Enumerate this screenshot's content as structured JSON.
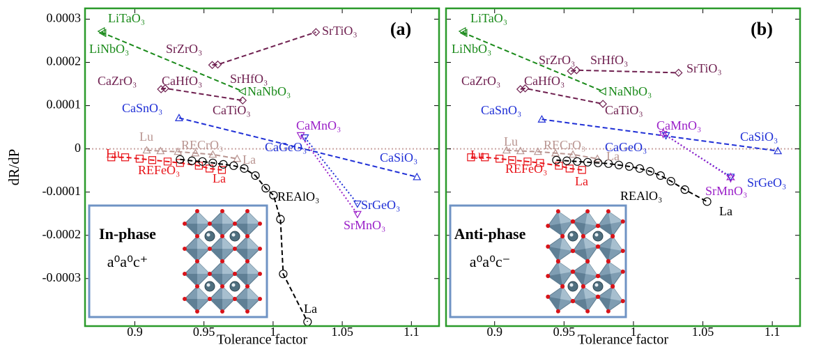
{
  "chart_data": [
    {
      "type": "line",
      "panel_label": "(a)",
      "ylabel": "dR/dP",
      "xlabel": "Tolerance factor",
      "xlim": [
        0.864,
        1.12
      ],
      "xticks": [
        0.9,
        0.95,
        1,
        1.05,
        1.1
      ],
      "ylim": [
        -0.00041,
        0.000325
      ],
      "yticks": [
        0.0003,
        0.0002,
        0.0001,
        0,
        -0.0001,
        -0.0002,
        -0.0003
      ],
      "show_ytick_labels": true,
      "reference_line": 0,
      "reference_color": "#c9a3a0",
      "frame_color": "#2a9a2a",
      "series": [
        {
          "color": "#1a8a1a",
          "dash": "dashed",
          "marker": "tri-left",
          "x": [
            0.876,
            0.877,
            0.978
          ],
          "values": [
            0.000272,
            0.000268,
            0.000133
          ]
        },
        {
          "color": "#6e1f4f",
          "dash": "dashed",
          "marker": "diamond",
          "x": [
            0.956,
            0.96,
            1.031
          ],
          "values": [
            0.000194,
            0.000195,
            0.00027
          ]
        },
        {
          "color": "#6e1f4f",
          "dash": "dashed",
          "marker": "diamond",
          "x": [
            0.919,
            0.922,
            0.978
          ],
          "values": [
            0.000138,
            0.00014,
            0.000112
          ]
        },
        {
          "color": "#1f2fd6",
          "dash": "dashed",
          "marker": "triangle",
          "x": [
            0.932,
            1.104
          ],
          "values": [
            7.15e-05,
            -6.5e-05
          ]
        },
        {
          "color": "#1f2fd6",
          "dash": "dotted",
          "marker": "tri-down",
          "x": [
            1.023,
            1.061
          ],
          "values": [
            2.6e-05,
            -0.000127
          ]
        },
        {
          "color": "#9a1fc8",
          "dash": "dotted",
          "marker": "tri-down",
          "x": [
            1.02,
            1.061
          ],
          "values": [
            3.1e-05,
            -0.000151
          ]
        },
        {
          "color": "#e8141a",
          "dash": "dashed",
          "marker": "square",
          "x": [
            0.883,
            0.893,
            0.9035,
            0.9126,
            0.9237,
            0.9327,
            0.9463,
            0.954,
            0.963
          ],
          "values": [
            -1.95e-05,
            -1.95e-05,
            -2.28e-05,
            -2.6e-05,
            -2.93e-05,
            -3.25e-05,
            -3.9e-05,
            -4.55e-05,
            -4.88e-05
          ]
        },
        {
          "color": "#b89490",
          "dash": "dashed",
          "marker": "triangle",
          "x": [
            0.9086,
            0.9186,
            0.9312,
            0.9438,
            0.9564,
            0.974
          ],
          "values": [
            -3.3e-06,
            -4.9e-06,
            -6.5e-06,
            -9.8e-06,
            -1.3e-05,
            -2.28e-05
          ]
        },
        {
          "color": "#000000",
          "dash": "dashed",
          "marker": "circle",
          "x": [
            0.9327,
            0.9413,
            0.9489,
            0.9564,
            0.964,
            0.9715,
            0.9791,
            0.9872,
            0.9947,
            1.0003,
            1.0053,
            1.0073,
            1.0249
          ],
          "values": [
            -2.44e-05,
            -2.76e-05,
            -2.93e-05,
            -3.25e-05,
            -3.58e-05,
            -3.9e-05,
            -4.55e-05,
            -6.18e-05,
            -9.11e-05,
            -0.0001073,
            -0.0001626,
            -0.0002894,
            -0.0004
          ]
        }
      ],
      "annotations": [
        {
          "text": "LiTaO₃",
          "color": "#1a8a1a"
        },
        {
          "text": "LiNbO₃",
          "color": "#1a8a1a"
        },
        {
          "text": "SrTiO₃",
          "color": "#6e1f4f"
        },
        {
          "text": "SrZrO₃",
          "color": "#6e1f4f"
        },
        {
          "text": "SrHfO₃",
          "color": "#6e1f4f"
        },
        {
          "text": "CaZrO₃",
          "color": "#6e1f4f"
        },
        {
          "text": "CaHfO₃",
          "color": "#6e1f4f"
        },
        {
          "text": "NaNbO₃",
          "color": "#1a8a1a"
        },
        {
          "text": "CaTiO₃",
          "color": "#6e1f4f"
        },
        {
          "text": "CaSnO₃",
          "color": "#1f2fd6"
        },
        {
          "text": "CaMnO₃",
          "color": "#9a1fc8"
        },
        {
          "text": "CaGeO₃",
          "color": "#1f2fd6"
        },
        {
          "text": "CaSiO₃",
          "color": "#1f2fd6"
        },
        {
          "text": "Lu",
          "color": "#b89490"
        },
        {
          "text": "RECrO₃",
          "color": "#b89490"
        },
        {
          "text": "Lu",
          "color": "#e8141a"
        },
        {
          "text": "La",
          "color": "#b89490"
        },
        {
          "text": "REFeO₃",
          "color": "#e8141a"
        },
        {
          "text": "La",
          "color": "#e8141a"
        },
        {
          "text": "REAlO₃",
          "color": "#000000"
        },
        {
          "text": "SrGeO₃",
          "color": "#1f2fd6"
        },
        {
          "text": "SrMnO₃",
          "color": "#9a1fc8"
        },
        {
          "text": "La",
          "color": "#000000"
        }
      ],
      "inset": {
        "lines": [
          "In-phase",
          "a⁰a⁰c⁺"
        ],
        "border_color": "#6f93c4"
      }
    },
    {
      "type": "line",
      "panel_label": "(b)",
      "xlabel": "Tolerance factor",
      "xlim": [
        0.865,
        1.12
      ],
      "xticks": [
        0.9,
        0.95,
        1,
        1.05,
        1.1
      ],
      "ylim": [
        -0.00041,
        0.000325
      ],
      "yticks": [
        0.0003,
        0.0002,
        0.0001,
        0,
        -0.0001,
        -0.0002,
        -0.0003
      ],
      "show_ytick_labels": false,
      "reference_line": 0,
      "reference_color": "#c9a3a0",
      "frame_color": "#2a9a2a",
      "series": [
        {
          "color": "#1a8a1a",
          "dash": "dashed",
          "marker": "tri-left",
          "x": [
            0.877,
            0.878,
            0.978
          ],
          "values": [
            0.000272,
            0.000268,
            0.000133
          ]
        },
        {
          "color": "#6e1f4f",
          "dash": "dashed",
          "marker": "diamond",
          "x": [
            0.955,
            0.959,
            1.0325
          ],
          "values": [
            0.00018,
            0.000182,
            0.000176
          ]
        },
        {
          "color": "#6e1f4f",
          "dash": "dashed",
          "marker": "diamond",
          "x": [
            0.9186,
            0.922,
            0.978
          ],
          "values": [
            0.000138,
            0.00014,
            0.000104
          ]
        },
        {
          "color": "#1f2fd6",
          "dash": "dashed",
          "marker": "triangle",
          "x": [
            0.934,
            1.104
          ],
          "values": [
            6.83e-05,
            -4.9e-06
          ]
        },
        {
          "color": "#1f2fd6",
          "dash": "dotted",
          "marker": "tri-down",
          "x": [
            1.0234,
            1.07
          ],
          "values": [
            3.1e-05,
            -6.5e-05
          ]
        },
        {
          "color": "#9a1fc8",
          "dash": "dotted",
          "marker": "star",
          "x": [
            1.0214,
            1.07
          ],
          "values": [
            3.58e-05,
            -6.67e-05
          ]
        },
        {
          "color": "#e8141a",
          "dash": "dashed",
          "marker": "square",
          "x": [
            0.883,
            0.893,
            0.9035,
            0.9126,
            0.9237,
            0.9327,
            0.9463,
            0.954,
            0.963
          ],
          "values": [
            -1.95e-05,
            -1.95e-05,
            -2.28e-05,
            -2.6e-05,
            -2.93e-05,
            -3.25e-05,
            -3.9e-05,
            -4.55e-05,
            -4.88e-05
          ]
        },
        {
          "color": "#b89490",
          "dash": "dashed",
          "marker": "triangle",
          "x": [
            0.9086,
            0.9186,
            0.9312,
            0.9438,
            0.9564,
            0.974
          ],
          "values": [
            -3.3e-06,
            -4.9e-06,
            -6.5e-06,
            -9.8e-06,
            -1.3e-05,
            -2.28e-05
          ]
        },
        {
          "color": "#000000",
          "dash": "dashed",
          "marker": "circle",
          "x": [
            0.9445,
            0.952,
            0.9595,
            0.967,
            0.9745,
            0.982,
            0.9895,
            0.997,
            1.0045,
            1.012,
            1.0195,
            1.027,
            1.037,
            1.053
          ],
          "values": [
            -2.61e-05,
            -2.76e-05,
            -2.93e-05,
            -3.09e-05,
            -3.25e-05,
            -3.41e-05,
            -3.74e-05,
            -4.07e-05,
            -4.55e-05,
            -5.2e-05,
            -6.18e-05,
            -7.48e-05,
            -9.43e-05,
            -0.000122
          ]
        }
      ],
      "annotations": [
        {
          "text": "LiTaO₃",
          "color": "#1a8a1a"
        },
        {
          "text": "LiNbO₃",
          "color": "#1a8a1a"
        },
        {
          "text": "SrTiO₃",
          "color": "#6e1f4f"
        },
        {
          "text": "SrZrO₃",
          "color": "#6e1f4f"
        },
        {
          "text": "SrHfO₃",
          "color": "#6e1f4f"
        },
        {
          "text": "CaZrO₃",
          "color": "#6e1f4f"
        },
        {
          "text": "CaHfO₃",
          "color": "#6e1f4f"
        },
        {
          "text": "NaNbO₃",
          "color": "#1a8a1a"
        },
        {
          "text": "CaTiO₃",
          "color": "#6e1f4f"
        },
        {
          "text": "CaSnO₃",
          "color": "#1f2fd6"
        },
        {
          "text": "CaMnO₃",
          "color": "#9a1fc8"
        },
        {
          "text": "CaGeO₃",
          "color": "#1f2fd6"
        },
        {
          "text": "CaSiO₃",
          "color": "#1f2fd6"
        },
        {
          "text": "Lu",
          "color": "#b89490"
        },
        {
          "text": "RECrO₃",
          "color": "#b89490"
        },
        {
          "text": "Lu",
          "color": "#e8141a"
        },
        {
          "text": "La",
          "color": "#b89490"
        },
        {
          "text": "REFeO₃",
          "color": "#e8141a"
        },
        {
          "text": "La",
          "color": "#e8141a"
        },
        {
          "text": "REAlO₃",
          "color": "#000000"
        },
        {
          "text": "SrGeO₃",
          "color": "#1f2fd6"
        },
        {
          "text": "SrMnO₃",
          "color": "#9a1fc8"
        },
        {
          "text": "La",
          "color": "#000000"
        }
      ],
      "inset": {
        "lines": [
          "Anti-phase",
          "a⁰a⁰c⁻"
        ],
        "border_color": "#6f93c4"
      }
    }
  ]
}
